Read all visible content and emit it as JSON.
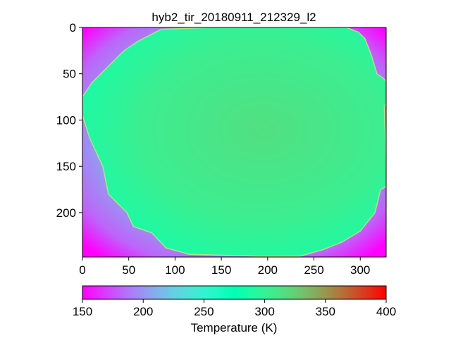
{
  "chart_data": {
    "type": "heatmap",
    "title": "hyb2_tir_20180911_212329_l2",
    "image_width": 328,
    "image_height": 248,
    "xlim": [
      0,
      328
    ],
    "ylim": [
      248,
      0
    ],
    "x_ticks": [
      0,
      50,
      100,
      150,
      200,
      250,
      300
    ],
    "y_ticks": [
      0,
      50,
      100,
      150,
      200
    ],
    "colorbar": {
      "label": "Temperature (K)",
      "min": 150,
      "max": 400,
      "ticks": [
        150,
        200,
        250,
        300,
        350,
        400
      ],
      "colormap": "rainbow"
    },
    "background_temperature_range": [
      150,
      215
    ],
    "asteroid_temperature_range": [
      285,
      340
    ],
    "asteroid_outline": [
      [
        85,
        2
      ],
      [
        140,
        0
      ],
      [
        200,
        0
      ],
      [
        250,
        0
      ],
      [
        285,
        0
      ],
      [
        290,
        2
      ],
      [
        298,
        5
      ],
      [
        305,
        12
      ],
      [
        312,
        30
      ],
      [
        318,
        50
      ],
      [
        325,
        55
      ],
      [
        330,
        60
      ],
      [
        336,
        72
      ],
      [
        326,
        85
      ],
      [
        328,
        150
      ],
      [
        328,
        172
      ],
      [
        322,
        175
      ],
      [
        316,
        200
      ],
      [
        300,
        220
      ],
      [
        280,
        232
      ],
      [
        260,
        240
      ],
      [
        235,
        247
      ],
      [
        190,
        247
      ],
      [
        150,
        246
      ],
      [
        115,
        245
      ],
      [
        90,
        238
      ],
      [
        75,
        222
      ],
      [
        55,
        215
      ],
      [
        48,
        200
      ],
      [
        28,
        180
      ],
      [
        25,
        165
      ],
      [
        22,
        150
      ],
      [
        8,
        120
      ],
      [
        0,
        95
      ],
      [
        0,
        75
      ],
      [
        10,
        60
      ],
      [
        20,
        50
      ],
      [
        30,
        40
      ],
      [
        45,
        25
      ],
      [
        60,
        15
      ]
    ]
  }
}
